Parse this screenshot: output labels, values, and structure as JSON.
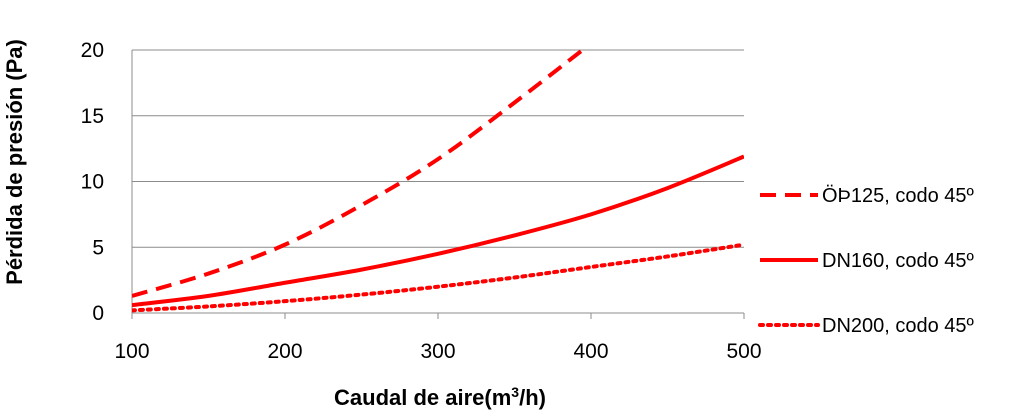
{
  "chart_data": {
    "type": "line",
    "title": "",
    "xlabel": "Caudal de aire(m",
    "xlabel_sup": "3",
    "xlabel_end": "/h)",
    "ylabel": "Pérdida de presión (Pa)",
    "xlim": [
      100,
      500
    ],
    "ylim": [
      0,
      20
    ],
    "x_ticks": [
      "100",
      "200",
      "300",
      "400",
      "500"
    ],
    "y_ticks": [
      "0",
      "5",
      "10",
      "15",
      "20"
    ],
    "grid": "horizontal",
    "legend_position": "right",
    "series": [
      {
        "name": "ÖÞ125, codo 45º",
        "style": "dashed",
        "color": "#ff0000",
        "x": [
          100,
          150,
          200,
          250,
          300,
          350,
          400
        ],
        "y": [
          1.3,
          3.0,
          5.2,
          8.2,
          11.7,
          16.0,
          20.5
        ]
      },
      {
        "name": "DN160, codo 45º",
        "style": "solid",
        "color": "#ff0000",
        "x": [
          100,
          150,
          200,
          250,
          300,
          350,
          400,
          450,
          500
        ],
        "y": [
          0.6,
          1.3,
          2.3,
          3.3,
          4.5,
          5.9,
          7.5,
          9.5,
          11.9
        ]
      },
      {
        "name": "DN200, codo 45º",
        "style": "dotted",
        "color": "#ff0000",
        "x": [
          100,
          150,
          200,
          250,
          300,
          350,
          400,
          450,
          500
        ],
        "y": [
          0.2,
          0.5,
          0.9,
          1.4,
          2.0,
          2.7,
          3.5,
          4.3,
          5.2
        ]
      }
    ]
  }
}
